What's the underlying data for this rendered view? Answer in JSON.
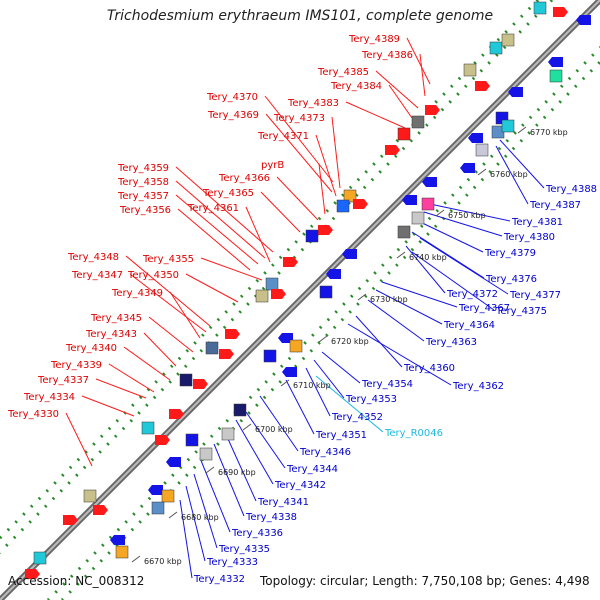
{
  "title": "Trichodesmium erythraeum IMS101, complete genome",
  "footer": {
    "accession": "Accession: NC_008312",
    "stats": "Topology: circular; Length: 7,750,108 bp; Genes: 4,498"
  },
  "colors": {
    "backbone": "#8c8c8c",
    "forward_gene": "#ff1a1a",
    "reverse_gene": "#1414e6",
    "forward_label": "#dd0000",
    "reverse_label": "#0000cc",
    "rna_label": "#20b8e0",
    "dots": "#2a8a2a",
    "kbp_label": "#222222"
  },
  "kbp_ticks": [
    "6670 kbp",
    "6680 kbp",
    "6690 kbp",
    "6700 kbp",
    "6710 kbp",
    "6720 kbp",
    "6730 kbp",
    "6740 kbp",
    "6750 kbp",
    "6760 kbp",
    "6770 kbp"
  ],
  "forward_labels": [
    "Tery_4389",
    "Tery_4386",
    "Tery_4385",
    "Tery_4384",
    "Tery_4383",
    "Tery_4370",
    "Tery_4369",
    "Tery_4373",
    "Tery_4371",
    "pyrB",
    "Tery_4366",
    "Tery_4365",
    "Tery_4359",
    "Tery_4358",
    "Tery_4357",
    "Tery_4356",
    "Tery_4361",
    "Tery_4348",
    "Tery_4355",
    "Tery_4347",
    "Tery_4350",
    "Tery_4349",
    "Tery_4345",
    "Tery_4343",
    "Tery_4340",
    "Tery_4339",
    "Tery_4337",
    "Tery_4334",
    "Tery_4330"
  ],
  "reverse_labels": [
    "Tery_4388",
    "Tery_4387",
    "Tery_4381",
    "Tery_4380",
    "Tery_4379",
    "Tery_4376",
    "Tery_4377",
    "Tery_4372",
    "Tery_4375",
    "Tery_4367",
    "Tery_4364",
    "Tery_4363",
    "Tery_4360",
    "Tery_4362",
    "Tery_4354",
    "Tery_4353",
    "Tery_4352",
    "Tery_R0046",
    "Tery_4351",
    "Tery_4346",
    "Tery_4344",
    "Tery_4342",
    "Tery_4341",
    "Tery_4338",
    "Tery_4336",
    "Tery_4335",
    "Tery_4333",
    "Tery_4332"
  ]
}
